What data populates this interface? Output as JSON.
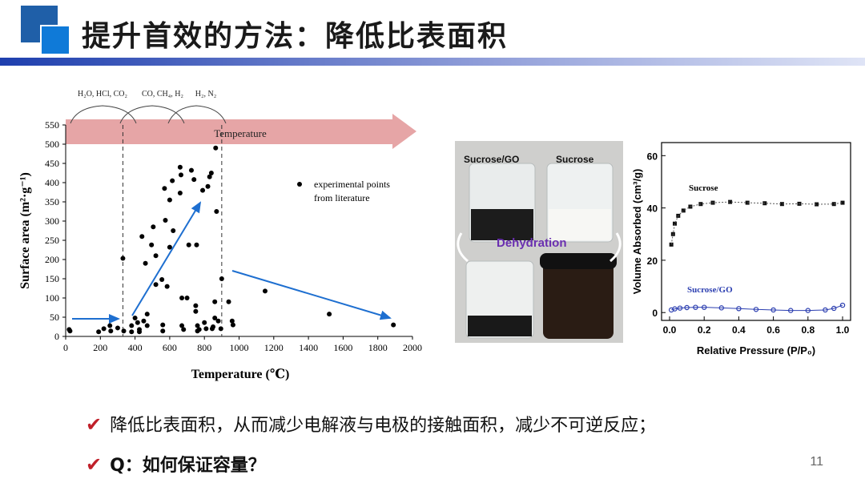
{
  "slide": {
    "title": "提升首效的方法：降低比表面积",
    "page_number": "11",
    "bullets": [
      "降低比表面积，从而减少电解液与电极的接触面积，减少不可逆反应；",
      "Q：如何保证容量？"
    ]
  },
  "colors": {
    "accent": "#1f5fa8",
    "arrow_fill": "#e6a5a6",
    "trend_arrow": "#1e6fd0",
    "check": "#c0202a"
  },
  "chart_data": [
    {
      "type": "scatter",
      "xlabel": "Temperature (℃)",
      "ylabel": "Surface area (m²·g⁻¹)",
      "xlim": [
        0,
        2000
      ],
      "ylim": [
        0,
        550
      ],
      "x_ticks": [
        "0",
        "200",
        "400",
        "600",
        "800",
        "1000",
        "1200",
        "1400",
        "1600",
        "1800",
        "2000"
      ],
      "y_ticks": [
        "0",
        "50",
        "100",
        "150",
        "200",
        "250",
        "300",
        "350",
        "400",
        "450",
        "500",
        "550"
      ],
      "banner_label": "Temperature",
      "gas_labels": [
        "H₂O, HCl, CO₂",
        "CO, CH₄, H₂",
        "H₂, N₂"
      ],
      "legend": [
        "experimental points",
        "from literature"
      ],
      "dashed_lines_x": [
        330,
        900
      ],
      "points": [
        [
          20,
          18
        ],
        [
          25,
          14
        ],
        [
          190,
          12
        ],
        [
          220,
          20
        ],
        [
          255,
          28
        ],
        [
          260,
          14
        ],
        [
          300,
          22
        ],
        [
          330,
          203
        ],
        [
          335,
          14
        ],
        [
          380,
          28
        ],
        [
          380,
          12
        ],
        [
          400,
          48
        ],
        [
          415,
          36
        ],
        [
          425,
          18
        ],
        [
          425,
          12
        ],
        [
          440,
          260
        ],
        [
          450,
          40
        ],
        [
          460,
          190
        ],
        [
          470,
          58
        ],
        [
          470,
          28
        ],
        [
          495,
          238
        ],
        [
          505,
          285
        ],
        [
          520,
          210
        ],
        [
          520,
          135
        ],
        [
          555,
          148
        ],
        [
          560,
          30
        ],
        [
          560,
          14
        ],
        [
          570,
          385
        ],
        [
          575,
          302
        ],
        [
          585,
          130
        ],
        [
          600,
          355
        ],
        [
          600,
          232
        ],
        [
          615,
          405
        ],
        [
          620,
          275
        ],
        [
          660,
          440
        ],
        [
          660,
          373
        ],
        [
          665,
          420
        ],
        [
          670,
          100
        ],
        [
          670,
          28
        ],
        [
          680,
          18
        ],
        [
          700,
          100
        ],
        [
          710,
          238
        ],
        [
          725,
          432
        ],
        [
          740,
          408
        ],
        [
          750,
          80
        ],
        [
          750,
          65
        ],
        [
          755,
          238
        ],
        [
          760,
          28
        ],
        [
          760,
          14
        ],
        [
          770,
          18
        ],
        [
          790,
          380
        ],
        [
          800,
          36
        ],
        [
          810,
          20
        ],
        [
          820,
          390
        ],
        [
          830,
          415
        ],
        [
          840,
          425
        ],
        [
          845,
          20
        ],
        [
          850,
          25
        ],
        [
          860,
          90
        ],
        [
          860,
          48
        ],
        [
          865,
          490
        ],
        [
          870,
          325
        ],
        [
          880,
          40
        ],
        [
          895,
          20
        ],
        [
          900,
          150
        ],
        [
          940,
          90
        ],
        [
          960,
          40
        ],
        [
          965,
          30
        ],
        [
          1150,
          118
        ],
        [
          1520,
          58
        ],
        [
          1890,
          30
        ]
      ]
    },
    {
      "type": "scatter",
      "xlabel": "Relative Pressure (P/P₀)",
      "ylabel": "Volume Absorbed (cm³/g)",
      "xlim": [
        0,
        1.0
      ],
      "ylim": [
        -3,
        65
      ],
      "x_ticks": [
        "0.0",
        "0.2",
        "0.4",
        "0.6",
        "0.8",
        "1.0"
      ],
      "y_ticks": [
        "0",
        "20",
        "40",
        "60"
      ],
      "series": [
        {
          "name": "Sucrose",
          "x": [
            0.01,
            0.02,
            0.03,
            0.05,
            0.08,
            0.12,
            0.18,
            0.25,
            0.35,
            0.45,
            0.55,
            0.65,
            0.75,
            0.85,
            0.95,
            1.0
          ],
          "y": [
            26,
            30,
            34,
            37,
            39,
            40.5,
            41.5,
            42,
            42.3,
            42,
            41.8,
            41.5,
            41.6,
            41.4,
            41.5,
            42
          ]
        },
        {
          "name": "Sucrose/GO",
          "x": [
            0.01,
            0.03,
            0.06,
            0.1,
            0.15,
            0.2,
            0.3,
            0.4,
            0.5,
            0.6,
            0.7,
            0.8,
            0.9,
            0.95,
            1.0
          ],
          "y": [
            1,
            1.4,
            1.7,
            1.9,
            2.0,
            2.0,
            1.8,
            1.5,
            1.2,
            1.0,
            0.8,
            0.8,
            1.0,
            1.6,
            2.8
          ]
        }
      ]
    }
  ],
  "photo": {
    "labels": [
      "Sucrose/GO",
      "Sucrose",
      "Dehydration"
    ]
  }
}
